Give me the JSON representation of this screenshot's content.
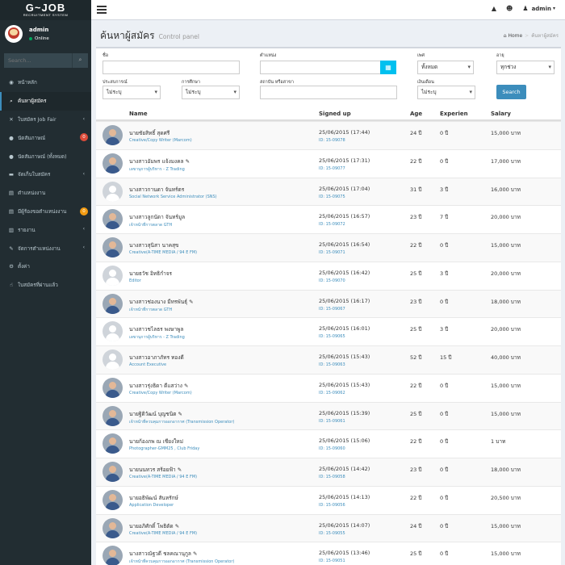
{
  "brand": {
    "logo_main": "G~JOB",
    "logo_sub": "RECRUITMENT SYSTEM"
  },
  "user": {
    "name": "admin",
    "status": "Online"
  },
  "sidebar": {
    "search_placeholder": "Search...",
    "items": [
      {
        "label": "หน้าหลัก",
        "icon": "dashboard-icon",
        "glyph": "◉",
        "active": false,
        "chevron": false
      },
      {
        "label": "ค้นหาผู้สมัคร",
        "icon": "search-icon",
        "glyph": "⌕",
        "active": true,
        "chevron": false
      },
      {
        "label": "ใบสมัคร Job Fair",
        "icon": "wrench-icon",
        "glyph": "✕",
        "active": false,
        "chevron": true
      },
      {
        "label": "นัดสัมภาษณ์",
        "icon": "comments-icon",
        "glyph": "●",
        "active": false,
        "badge": "0",
        "badge_color": "#dd4b39"
      },
      {
        "label": "นัดสัมภาษณ์ (ทั้งหมด)",
        "icon": "comments-icon",
        "glyph": "●",
        "active": false
      },
      {
        "label": "จัดเก็บใบสมัคร",
        "icon": "folder-icon",
        "glyph": "▬",
        "active": false,
        "chevron": true
      },
      {
        "label": "ตำแหน่งงาน",
        "icon": "list-icon",
        "glyph": "▤",
        "active": false
      },
      {
        "label": "มีผู้ร้องขอตำแหน่งงาน",
        "icon": "list-icon",
        "glyph": "▤",
        "active": false,
        "badge": "0",
        "badge_color": "#f39c12"
      },
      {
        "label": "รายงาน",
        "icon": "chart-icon",
        "glyph": "▥",
        "active": false,
        "chevron": true
      },
      {
        "label": "จัดการตำแหน่งงาน",
        "icon": "briefcase-icon",
        "glyph": "✎",
        "active": false,
        "chevron": true
      },
      {
        "label": "ตั้งค่า",
        "icon": "gear-icon",
        "glyph": "⚙",
        "active": false
      },
      {
        "label": "ใบสมัครที่ผ่านแล้ว",
        "icon": "thumbs-up-icon",
        "glyph": "☝",
        "active": false
      }
    ]
  },
  "page": {
    "title": "ค้นหาผู้สมัคร",
    "subtitle": "Control panel"
  },
  "breadcrumb": {
    "home": "Home",
    "current": "ค้นหาผู้สมัคร"
  },
  "filters": {
    "name_label": "ชื่อ",
    "position_label": "ตำแหน่ง",
    "gender_label": "เพศ",
    "gender_value": "ทั้งหมด",
    "age_label": "อายุ",
    "age_value": "ทุกช่วง",
    "experience_label": "ประสบการณ์",
    "experience_value": "ไม่ระบุ",
    "education_label": "การศึกษา",
    "education_value": "ไม่ระบุ",
    "institution_label": "สถาบัน หรือสาขา",
    "salary_label": "เงินเดือน",
    "salary_value": "ไม่ระบุ",
    "search_button": "Search"
  },
  "table": {
    "headers": {
      "name": "Name",
      "signed": "Signed up",
      "age": "Age",
      "exp": "Experien",
      "salary": "Salary"
    },
    "rows": [
      {
        "name": "นายชัยสิทธิ์ สุดศรี",
        "position": "Creative/Copy Writer (Marcom)",
        "date": "25/06/2015 (17:44)",
        "id": "ID: 15-09078",
        "age": "24 ปี",
        "exp": "0 ปี",
        "salary": "15,000 บาท",
        "photo": true
      },
      {
        "name": "นางสาวอัมพร แจ้งมงคล ✎",
        "position": "เลขานุการผู้บริหาร - Z Trading",
        "date": "25/06/2015 (17:31)",
        "id": "ID: 15-09077",
        "age": "22 ปี",
        "exp": "0 ปี",
        "salary": "17,000 บาท",
        "photo": true
      },
      {
        "name": "นางสาวกานดา จันทร์ตร",
        "position": "Social Network Service Administrator (SNS)",
        "date": "25/06/2015 (17:04)",
        "id": "ID: 15-09075",
        "age": "31 ปี",
        "exp": "3 ปี",
        "salary": "16,000 บาท",
        "photo": false
      },
      {
        "name": "นางสาวลูกนัดา จันทร์มูล",
        "position": "เจ้าหน้าที่การตลาด GTH",
        "date": "25/06/2015 (16:57)",
        "id": "ID: 15-09072",
        "age": "23 ปี",
        "exp": "7 ปี",
        "salary": "20,000 บาท",
        "photo": true
      },
      {
        "name": "นางสาวสุนิสา นาคสุข",
        "position": "Creative(A-TIME MEDIA / 94 E FM)",
        "date": "25/06/2015 (16:54)",
        "id": "ID: 15-09071",
        "age": "22 ปี",
        "exp": "0 ปี",
        "salary": "15,000 บาท",
        "photo": true
      },
      {
        "name": "นายธวัช อิทธิกำจร",
        "position": "Editor",
        "date": "25/06/2015 (16:42)",
        "id": "ID: 15-09070",
        "age": "25 ปี",
        "exp": "3 ปี",
        "salary": "20,000 บาท",
        "photo": false
      },
      {
        "name": "นางสาวช่องนาง มีทรพันธุ์ ✎",
        "position": "เจ้าหน้าที่การตลาด GTH",
        "date": "25/06/2015 (16:17)",
        "id": "ID: 15-09067",
        "age": "23 ปี",
        "exp": "0 ปี",
        "salary": "18,000 บาท",
        "photo": true
      },
      {
        "name": "นางสาวชไลธร พงษาพูล",
        "position": "เลขานุการผู้บริหาร - Z Trading",
        "date": "25/06/2015 (16:01)",
        "id": "ID: 15-09065",
        "age": "25 ปี",
        "exp": "3 ปี",
        "salary": "20,000 บาท",
        "photo": false
      },
      {
        "name": "นางสาวอาภาภัทร ทองดี",
        "position": "Account Executive",
        "date": "25/06/2015 (15:43)",
        "id": "ID: 15-09063",
        "age": "52 ปี",
        "exp": "15 ปี",
        "salary": "40,000 บาท",
        "photo": false
      },
      {
        "name": "นางสาวรุ่งธิดา ดีแสว่าง ✎",
        "position": "Creative/Copy Writer (Marcom)",
        "date": "25/06/2015 (15:43)",
        "id": "ID: 15-09062",
        "age": "22 ปี",
        "exp": "0 ปี",
        "salary": "15,000 บาท",
        "photo": true
      },
      {
        "name": "นายฐิติวัฒน์ บุญชนิต ✎",
        "position": "เจ้าหน้าที่ควบคุมการออกอากาศ (Transmission Operator)",
        "date": "25/06/2015 (15:39)",
        "id": "ID: 15-09061",
        "age": "25 ปี",
        "exp": "0 ปี",
        "salary": "15,000 บาท",
        "photo": true
      },
      {
        "name": "นายก้องภพ ณ เชียงใหม่",
        "position": "Photographer-GMM25 , Club Friday",
        "date": "25/06/2015 (15:06)",
        "id": "ID: 15-09060",
        "age": "22 ปี",
        "exp": "0 ปี",
        "salary": "1 บาท",
        "photo": true
      },
      {
        "name": "นายนนทวร สร้อยฟ้า ✎",
        "position": "Creative(A-TIME MEDIA / 94 E FM)",
        "date": "25/06/2015 (14:42)",
        "id": "ID: 15-09058",
        "age": "23 ปี",
        "exp": "0 ปี",
        "salary": "18,000 บาท",
        "photo": true
      },
      {
        "name": "นายอธิพัฒน์ สันหรักษ์",
        "position": "Application Developer",
        "date": "25/06/2015 (14:13)",
        "id": "ID: 15-09056",
        "age": "22 ปี",
        "exp": "0 ปี",
        "salary": "20,500 บาท",
        "photo": true
      },
      {
        "name": "นายอภิศักดิ์ โพธิตัด ✎",
        "position": "Creative(A-TIME MEDIA / 94 E FM)",
        "date": "25/06/2015 (14:07)",
        "id": "ID: 15-09055",
        "age": "24 ปี",
        "exp": "0 ปี",
        "salary": "15,000 บาท",
        "photo": true
      },
      {
        "name": "นางสาวณัฐวดี ชลคณานุกูล ✎",
        "position": "เจ้าหน้าที่ควบคุมการออกอากาศ (Transmission Operator)",
        "date": "25/06/2015 (13:46)",
        "id": "ID: 15-09051",
        "age": "25 ปี",
        "exp": "0 ปี",
        "salary": "15,000 บาท",
        "photo": true
      }
    ]
  }
}
